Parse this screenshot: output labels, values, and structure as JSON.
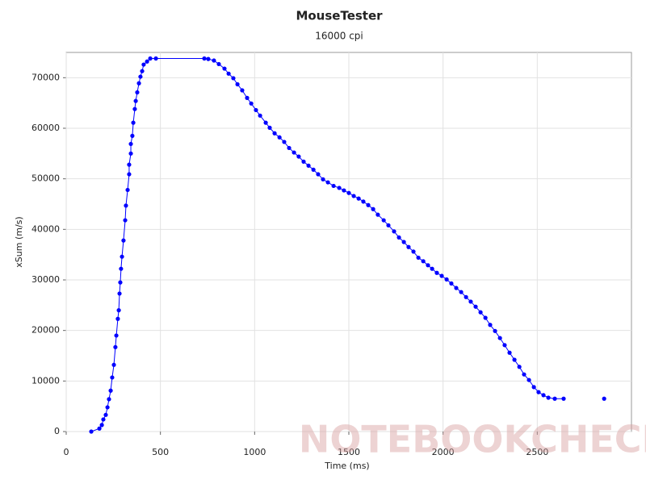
{
  "chart_data": {
    "type": "line",
    "title": "MouseTester",
    "subtitle": "16000 cpi",
    "x_label": "Time (ms)",
    "y_label": "xSum (m/s)",
    "watermark": "NOTEBOOKCHECK",
    "xlim": [
      0,
      3000
    ],
    "xticks": [
      0,
      500,
      1000,
      1500,
      2000,
      2500
    ],
    "ylim": [
      0,
      75000
    ],
    "yticks": [
      0,
      10000,
      20000,
      30000,
      40000,
      50000,
      60000,
      70000
    ],
    "grid": true,
    "series": [
      {
        "name": "xSum",
        "color": "#0000ff",
        "x": [
          133,
          176,
          189,
          197,
          210,
          219,
          227,
          236,
          244,
          253,
          261,
          266,
          274,
          279,
          283,
          287,
          291,
          296,
          304,
          313,
          317,
          326,
          334,
          334,
          343,
          343,
          351,
          356,
          364,
          369,
          377,
          386,
          394,
          403,
          411,
          429,
          446,
          476,
          733,
          754,
          784,
          810,
          840,
          862,
          887,
          909,
          934,
          960,
          982,
          1007,
          1029,
          1059,
          1080,
          1106,
          1132,
          1157,
          1183,
          1209,
          1234,
          1260,
          1286,
          1312,
          1337,
          1363,
          1389,
          1419,
          1449,
          1474,
          1500,
          1526,
          1552,
          1577,
          1603,
          1629,
          1654,
          1685,
          1710,
          1740,
          1766,
          1792,
          1817,
          1843,
          1869,
          1895,
          1920,
          1942,
          1967,
          1993,
          2019,
          2044,
          2070,
          2096,
          2122,
          2147,
          2173,
          2199,
          2225,
          2250,
          2276,
          2302,
          2327,
          2353,
          2379,
          2405,
          2430,
          2456,
          2482,
          2507,
          2533,
          2559,
          2593,
          2640,
          null,
          2855
        ],
        "values": [
          0,
          600,
          1300,
          2400,
          3300,
          4800,
          6400,
          8100,
          10700,
          13200,
          16700,
          19000,
          22300,
          24000,
          27300,
          29500,
          32200,
          34600,
          37800,
          41800,
          44700,
          47800,
          50900,
          52800,
          55000,
          56900,
          58500,
          61100,
          63800,
          65400,
          67100,
          68900,
          70200,
          71300,
          72600,
          73200,
          73800,
          73800,
          73800,
          73700,
          73400,
          72700,
          71800,
          70800,
          69900,
          68700,
          67500,
          66000,
          64900,
          63600,
          62500,
          61100,
          60100,
          59000,
          58200,
          57300,
          56100,
          55200,
          54400,
          53400,
          52600,
          51800,
          50900,
          49900,
          49300,
          48600,
          48200,
          47700,
          47200,
          46600,
          46100,
          45500,
          44800,
          44000,
          42900,
          41800,
          40800,
          39600,
          38400,
          37500,
          36500,
          35600,
          34400,
          33700,
          32900,
          32200,
          31400,
          30800,
          30100,
          29300,
          28400,
          27600,
          26600,
          25700,
          24700,
          23600,
          22500,
          21100,
          19900,
          18500,
          17100,
          15600,
          14200,
          12800,
          11300,
          10200,
          8800,
          7800,
          7200,
          6700,
          6500,
          6500,
          null,
          6500
        ]
      }
    ]
  }
}
